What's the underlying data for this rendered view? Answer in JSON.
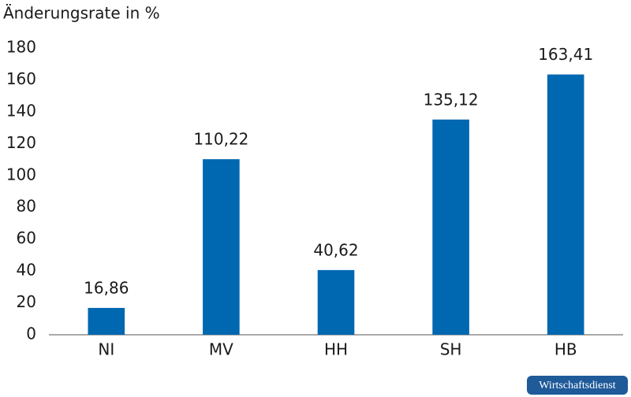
{
  "chart_data": {
    "type": "bar",
    "y_label": "Änderungsrate in %",
    "categories": [
      "NI",
      "MV",
      "HH",
      "SH",
      "HB"
    ],
    "values": [
      16.86,
      110.22,
      40.62,
      135.12,
      163.41
    ],
    "value_labels": [
      "16,86",
      "110,22",
      "40,62",
      "135,12",
      "163,41"
    ],
    "color": "#0067b1",
    "ylim": [
      0,
      180
    ],
    "yticks": [
      0,
      20,
      40,
      60,
      80,
      100,
      120,
      140,
      160,
      180
    ],
    "grid": false
  },
  "badge": "Wirtschaftsdienst"
}
